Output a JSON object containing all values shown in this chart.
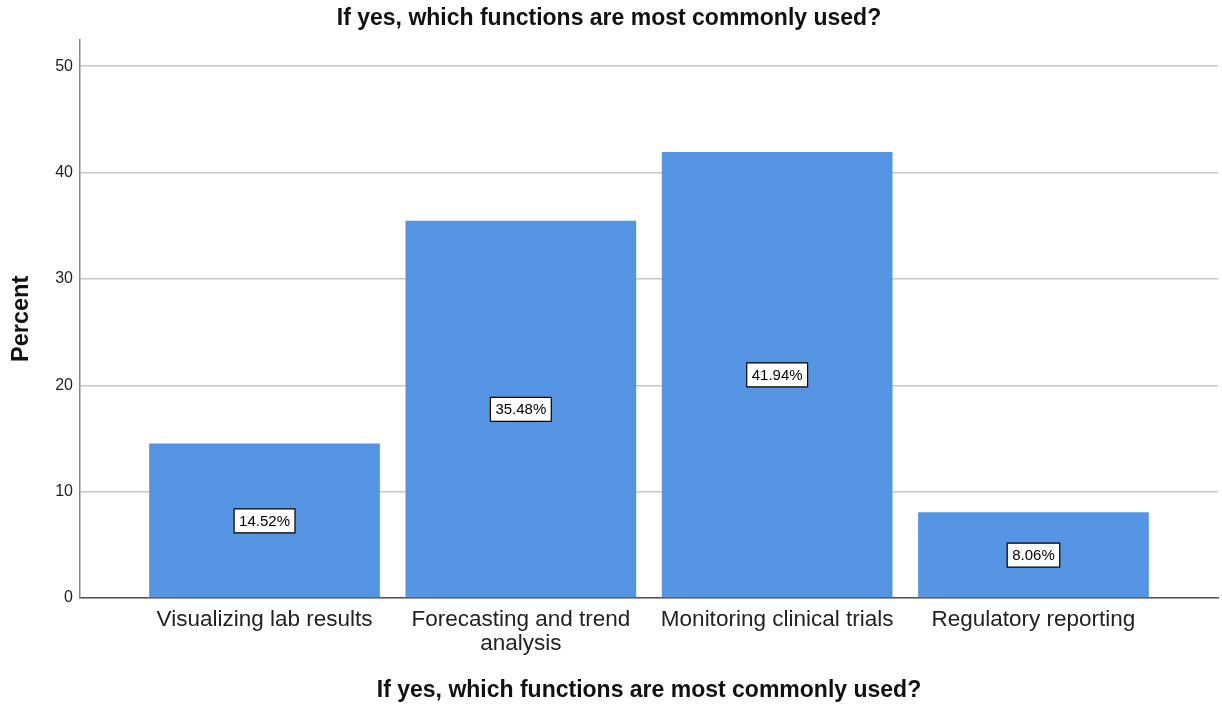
{
  "chart_data": {
    "type": "bar",
    "title": "If yes, which functions are most commonly used?",
    "xlabel": "If yes, which functions are most commonly used?",
    "ylabel": "Percent",
    "categories": [
      "Visualizing lab results",
      "Forecasting and trend analysis",
      "Monitoring clinical trials",
      "Regulatory reporting"
    ],
    "values": [
      14.52,
      35.48,
      41.94,
      8.06
    ],
    "color": "#5594e3",
    "value_labels": [
      "14.52%",
      "35.48%",
      "41.94%",
      "8.06%"
    ],
    "ylim": [
      0,
      52.5
    ],
    "yticks": [
      0,
      10,
      20,
      30,
      40,
      50
    ],
    "grid": "y",
    "legend": false
  }
}
